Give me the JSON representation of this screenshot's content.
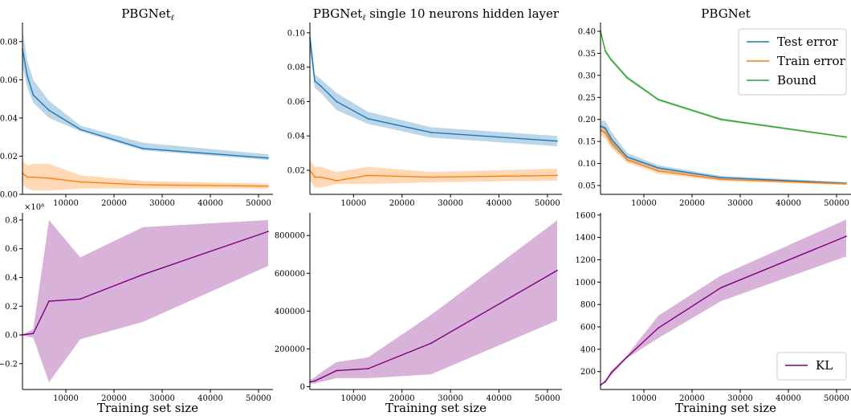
{
  "chart_data": [
    {
      "type": "line",
      "title": "PBGNet",
      "title_subscript": "ℓ",
      "xlabel": "",
      "ylabel": "",
      "xlim": [
        1000,
        53000
      ],
      "ylim": [
        0,
        0.09
      ],
      "x_ticks": [
        "10000",
        "20000",
        "30000",
        "40000",
        "50000"
      ],
      "y_ticks": [
        "0.00",
        "0.02",
        "0.04",
        "0.06",
        "0.08"
      ],
      "x": [
        1000,
        2000,
        3250,
        6500,
        13000,
        26000,
        52000
      ],
      "series": [
        {
          "name": "Test error",
          "color": "#1f77b4",
          "values": [
            0.076,
            0.062,
            0.052,
            0.044,
            0.034,
            0.024,
            0.019
          ],
          "lower": [
            0.067,
            0.056,
            0.048,
            0.04,
            0.033,
            0.023,
            0.018
          ],
          "upper": [
            0.086,
            0.07,
            0.06,
            0.049,
            0.036,
            0.027,
            0.021
          ]
        },
        {
          "name": "Train error",
          "color": "#ff7f0e",
          "values": [
            0.011,
            0.009,
            0.009,
            0.0085,
            0.0065,
            0.005,
            0.0043
          ],
          "lower": [
            0.005,
            0.003,
            0.002,
            0.002,
            0.003,
            0.003,
            0.003
          ],
          "upper": [
            0.018,
            0.015,
            0.016,
            0.016,
            0.01,
            0.007,
            0.0055
          ]
        }
      ]
    },
    {
      "type": "line",
      "title": "PBGNet",
      "title_subscript": "ℓ",
      "title_suffix": " single 10 neurons hidden layer",
      "xlabel": "",
      "ylabel": "",
      "xlim": [
        1000,
        53000
      ],
      "ylim": [
        0.006,
        0.106
      ],
      "x_ticks": [
        "10000",
        "20000",
        "30000",
        "40000",
        "50000"
      ],
      "y_ticks": [
        "0.02",
        "0.04",
        "0.06",
        "0.08",
        "0.10"
      ],
      "x": [
        1000,
        2000,
        3250,
        6500,
        13000,
        26000,
        52000
      ],
      "series": [
        {
          "name": "Test error",
          "color": "#1f77b4",
          "values": [
            0.097,
            0.072,
            0.069,
            0.06,
            0.05,
            0.042,
            0.037
          ],
          "lower": [
            0.09,
            0.068,
            0.065,
            0.055,
            0.047,
            0.039,
            0.034
          ],
          "upper": [
            0.104,
            0.076,
            0.073,
            0.065,
            0.054,
            0.045,
            0.04
          ]
        },
        {
          "name": "Train error",
          "color": "#ff7f0e",
          "values": [
            0.02,
            0.016,
            0.016,
            0.014,
            0.017,
            0.016,
            0.017
          ],
          "lower": [
            0.014,
            0.01,
            0.01,
            0.012,
            0.012,
            0.013,
            0.014
          ],
          "upper": [
            0.026,
            0.022,
            0.022,
            0.019,
            0.022,
            0.019,
            0.021
          ]
        }
      ]
    },
    {
      "type": "line",
      "title": "PBGNet",
      "xlabel": "",
      "ylabel": "",
      "xlim": [
        1000,
        53000
      ],
      "ylim": [
        0.03,
        0.42
      ],
      "x_ticks": [
        "10000",
        "20000",
        "30000",
        "40000",
        "50000"
      ],
      "y_ticks": [
        "0.05",
        "0.10",
        "0.15",
        "0.20",
        "0.25",
        "0.30",
        "0.35",
        "0.40"
      ],
      "legend": {
        "placement": "top-right",
        "entries": [
          "Test error",
          "Train error",
          "Bound"
        ]
      },
      "x": [
        1000,
        2000,
        3250,
        6500,
        13000,
        26000,
        52000
      ],
      "series": [
        {
          "name": "Test error",
          "color": "#1f77b4",
          "values": [
            0.185,
            0.18,
            0.155,
            0.115,
            0.09,
            0.068,
            0.055
          ],
          "lower": [
            0.175,
            0.165,
            0.14,
            0.108,
            0.085,
            0.064,
            0.052
          ],
          "upper": [
            0.198,
            0.196,
            0.172,
            0.124,
            0.096,
            0.072,
            0.058
          ]
        },
        {
          "name": "Train error",
          "color": "#ff7f0e",
          "values": [
            0.175,
            0.17,
            0.148,
            0.108,
            0.083,
            0.064,
            0.054
          ],
          "lower": [
            0.165,
            0.156,
            0.135,
            0.102,
            0.077,
            0.06,
            0.051
          ],
          "upper": [
            0.186,
            0.184,
            0.162,
            0.116,
            0.089,
            0.068,
            0.057
          ]
        },
        {
          "name": "Bound",
          "color": "#2ca02c",
          "values": [
            0.4,
            0.355,
            0.335,
            0.295,
            0.245,
            0.2,
            0.16
          ],
          "lower": [
            0.396,
            0.35,
            0.331,
            0.291,
            0.242,
            0.197,
            0.158
          ],
          "upper": [
            0.404,
            0.359,
            0.339,
            0.299,
            0.248,
            0.203,
            0.162
          ]
        }
      ]
    },
    {
      "type": "line",
      "title": "",
      "xlabel": "Training set size",
      "ylabel": "",
      "scale_label": "×10⁸",
      "xlim": [
        1000,
        53000
      ],
      "ylim": [
        -0.38,
        0.85
      ],
      "x_ticks": [
        "10000",
        "20000",
        "30000",
        "40000",
        "50000"
      ],
      "y_ticks": [
        "−0.2",
        "0.0",
        "0.2",
        "0.4",
        "0.6",
        "0.8"
      ],
      "x": [
        1000,
        2000,
        3250,
        6500,
        13000,
        26000,
        52000
      ],
      "series": [
        {
          "name": "KL",
          "color": "#800080",
          "values": [
            0.0,
            0.005,
            0.01,
            0.235,
            0.25,
            0.42,
            0.72
          ],
          "lower": [
            -0.005,
            -0.01,
            -0.02,
            -0.33,
            -0.03,
            0.09,
            0.48
          ],
          "upper": [
            0.005,
            0.02,
            0.04,
            0.8,
            0.54,
            0.75,
            0.8
          ]
        }
      ]
    },
    {
      "type": "line",
      "title": "",
      "xlabel": "Training set size",
      "ylabel": "",
      "xlim": [
        1000,
        53000
      ],
      "ylim": [
        -15000,
        920000
      ],
      "x_ticks": [
        "10000",
        "20000",
        "30000",
        "40000",
        "50000"
      ],
      "y_ticks": [
        "0",
        "200000",
        "400000",
        "600000",
        "800000"
      ],
      "x": [
        1000,
        2000,
        3250,
        6500,
        13000,
        26000,
        52000
      ],
      "series": [
        {
          "name": "KL",
          "color": "#800080",
          "values": [
            25000,
            30000,
            45000,
            85000,
            95000,
            230000,
            615000
          ],
          "lower": [
            15000,
            18000,
            25000,
            45000,
            45000,
            65000,
            350000
          ],
          "upper": [
            35000,
            50000,
            75000,
            130000,
            155000,
            380000,
            880000
          ]
        }
      ]
    },
    {
      "type": "line",
      "title": "",
      "xlabel": "Training set size",
      "ylabel": "",
      "xlim": [
        1000,
        53000
      ],
      "ylim": [
        40,
        1620
      ],
      "x_ticks": [
        "10000",
        "20000",
        "30000",
        "40000",
        "50000"
      ],
      "y_ticks": [
        "200",
        "400",
        "600",
        "800",
        "1000",
        "1200",
        "1400",
        "1600"
      ],
      "legend": {
        "placement": "bottom-right",
        "entries": [
          "KL"
        ]
      },
      "x": [
        1000,
        2000,
        3250,
        6500,
        13000,
        26000,
        52000
      ],
      "series": [
        {
          "name": "KL",
          "color": "#800080",
          "values": [
            80,
            110,
            190,
            330,
            590,
            950,
            1410
          ],
          "lower": [
            75,
            100,
            170,
            320,
            500,
            830,
            1230
          ],
          "upper": [
            85,
            125,
            210,
            345,
            700,
            1060,
            1560
          ]
        }
      ]
    }
  ]
}
